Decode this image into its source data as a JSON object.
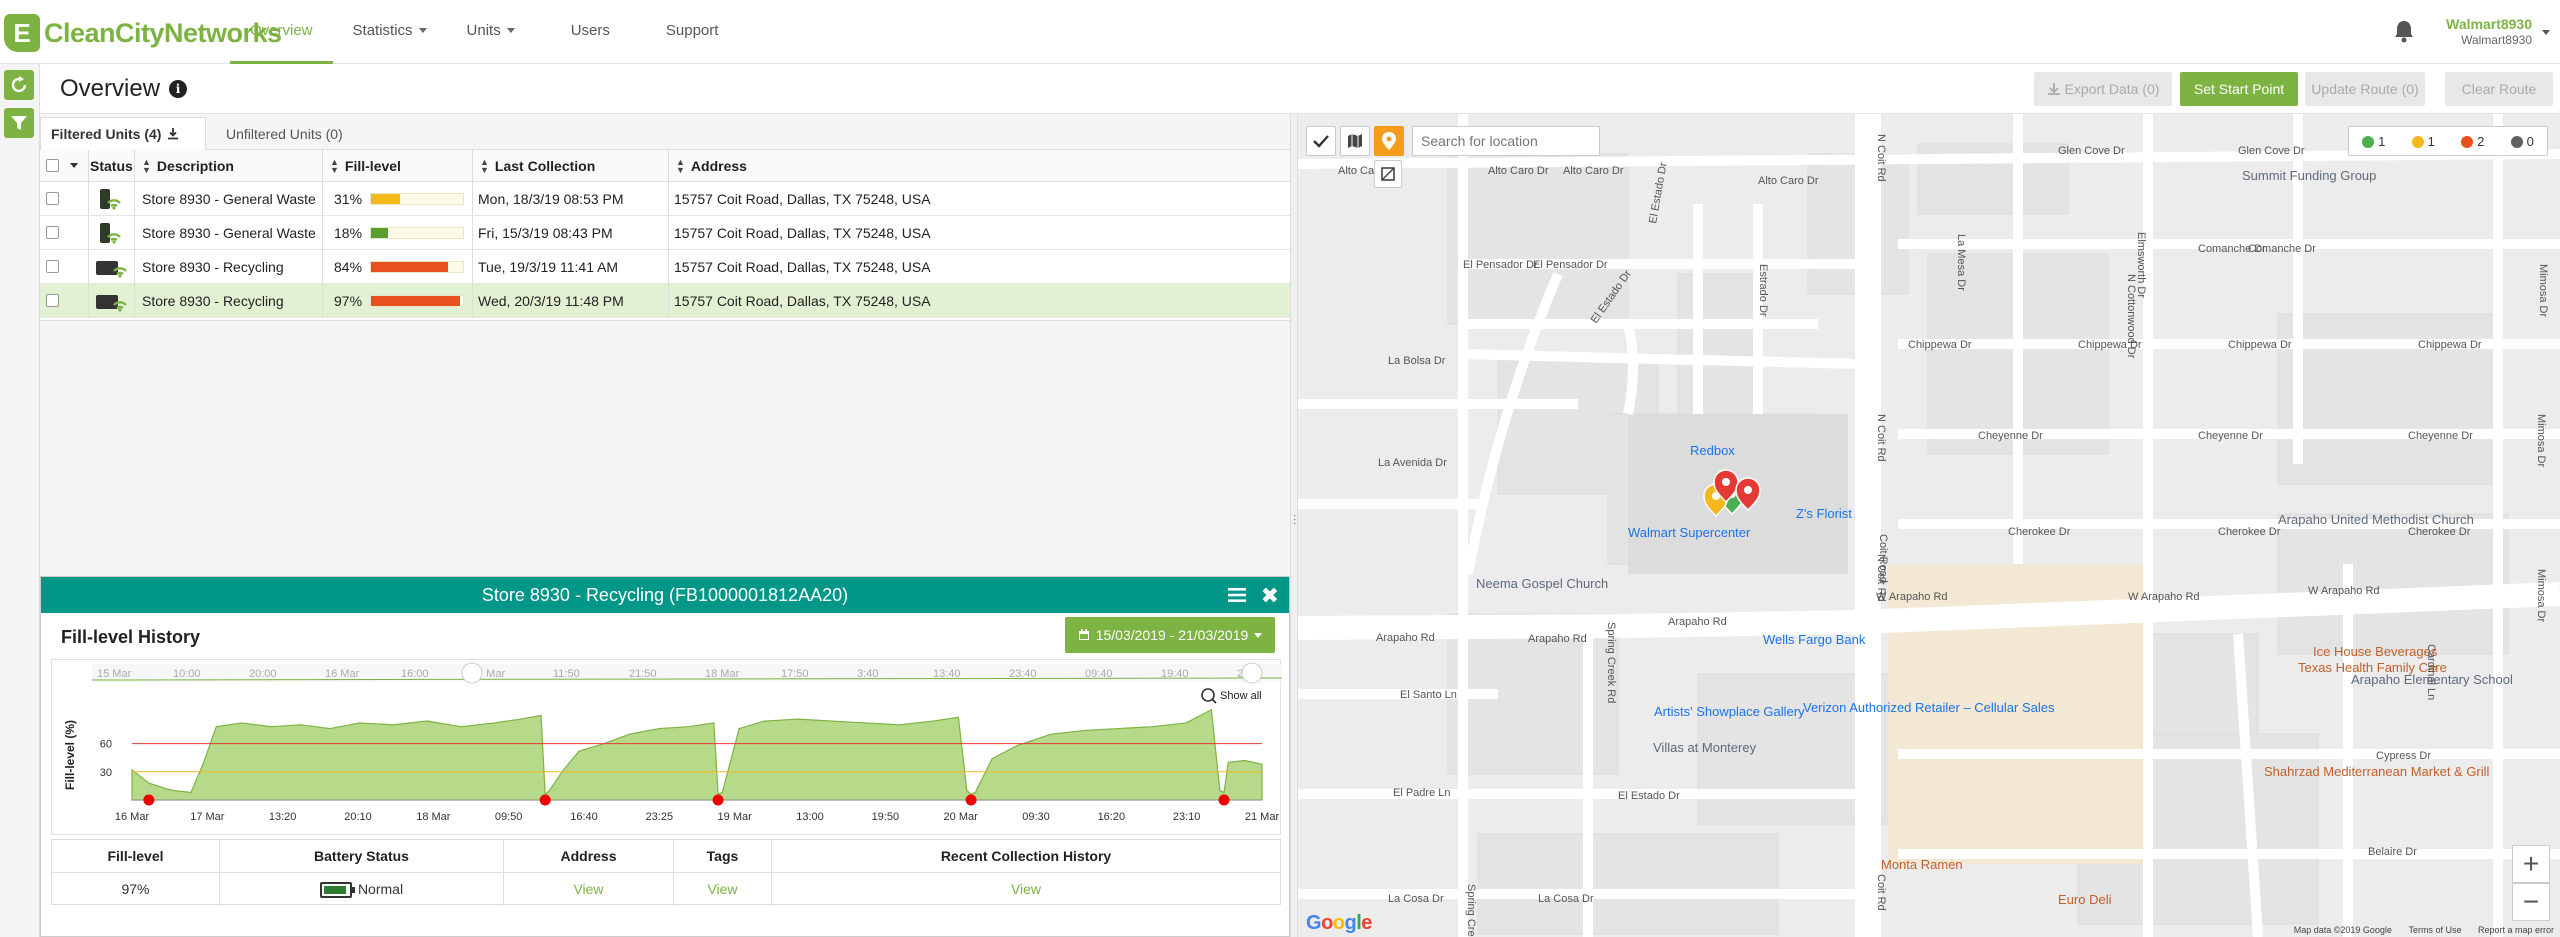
{
  "brand": {
    "letter": "E",
    "name": "CleanCityNetworks"
  },
  "nav": [
    {
      "label": "Overview"
    },
    {
      "label": "Statistics"
    },
    {
      "label": "Units"
    },
    {
      "label": "Users"
    },
    {
      "label": "Support"
    }
  ],
  "user": {
    "name": "Walmart8930",
    "sub": "Walmart8930"
  },
  "page": {
    "title": "Overview",
    "buttons": {
      "export": "Export Data (0)",
      "start": "Set Start Point",
      "update": "Update Route (0)",
      "clear": "Clear Route"
    }
  },
  "tabs": {
    "filtered": "Filtered Units (4)",
    "unfiltered": "Unfiltered Units (0)"
  },
  "grid": {
    "headers": {
      "status": "Status",
      "description": "Description",
      "fill": "Fill-level",
      "last": "Last Collection",
      "address": "Address"
    },
    "rows": [
      {
        "description": "Store 8930 - General Waste",
        "fill": "31%",
        "fill_value": 31,
        "fill_color": "#f5b81a",
        "last": "Mon, 18/3/19 08:53 PM",
        "address": "15757 Coit Road, Dallas, TX 75248, USA",
        "bin": "green"
      },
      {
        "description": "Store 8930 - General Waste",
        "fill": "18%",
        "fill_value": 18,
        "fill_color": "#5a9e2e",
        "last": "Fri, 15/3/19 08:43 PM",
        "address": "15757 Coit Road, Dallas, TX 75248, USA",
        "bin": "green"
      },
      {
        "description": "Store 8930 - Recycling",
        "fill": "84%",
        "fill_value": 84,
        "fill_color": "#e8501e",
        "last": "Tue, 19/3/19 11:41 AM",
        "address": "15757 Coit Road, Dallas, TX 75248, USA",
        "bin": "dark"
      },
      {
        "description": "Store 8930 - Recycling",
        "fill": "97%",
        "fill_value": 97,
        "fill_color": "#e8501e",
        "last": "Wed, 20/3/19 11:48 PM",
        "address": "15757 Coit Road, Dallas, TX 75248, USA",
        "bin": "dark"
      }
    ]
  },
  "detail": {
    "title": "Store 8930 - Recycling (FB1000001812AA20)",
    "history_title": "Fill-level History",
    "date_range": "15/03/2019 - 21/03/2019",
    "show_all": "Show all",
    "summary": {
      "headers": [
        "Fill-level",
        "Battery Status",
        "Address",
        "Tags",
        "Recent Collection History"
      ],
      "fill": "97%",
      "battery": "Normal",
      "address_link": "View",
      "tags_link": "View",
      "history_link": "View"
    }
  },
  "chart_data": {
    "type": "area",
    "title": "",
    "ylabel": "Fill-level (%)",
    "ylim": [
      0,
      100
    ],
    "yticks": [
      "30",
      "60"
    ],
    "threshold_red": 60,
    "threshold_yellow": 30,
    "xticks": [
      "16 Mar",
      "17 Mar",
      "13:20",
      "20:10",
      "18 Mar",
      "09:50",
      "16:40",
      "23:25",
      "19 Mar",
      "13:00",
      "19:50",
      "20 Mar",
      "09:30",
      "16:20",
      "23:10",
      "21 Mar"
    ],
    "navigator_ticks": [
      "15 Mar",
      "10:00",
      "20:00",
      "16 Mar",
      "16:00",
      "7 Mar",
      "11:50",
      "21:50",
      "18 Mar",
      "17:50",
      "3:40",
      "13:40",
      "23:40",
      "09:40",
      "19:40",
      "20"
    ],
    "x": [
      0,
      4,
      8,
      10,
      14,
      17,
      20,
      26,
      33,
      40,
      47,
      54,
      62,
      70,
      78,
      86,
      92,
      97,
      98,
      99,
      102,
      106,
      112,
      118,
      125,
      132,
      138,
      139,
      140,
      144,
      150,
      158,
      166,
      174,
      182,
      190,
      196,
      198,
      199,
      200,
      204,
      210,
      218,
      226,
      234,
      242,
      250,
      256,
      258,
      259,
      260,
      264,
      268
    ],
    "y": [
      32,
      18,
      12,
      10,
      8,
      40,
      78,
      82,
      78,
      80,
      76,
      82,
      80,
      84,
      78,
      82,
      86,
      90,
      6,
      10,
      30,
      52,
      60,
      70,
      76,
      78,
      82,
      6,
      8,
      76,
      84,
      86,
      84,
      82,
      80,
      84,
      88,
      10,
      6,
      8,
      44,
      58,
      70,
      74,
      76,
      78,
      82,
      96,
      10,
      8,
      40,
      42,
      38
    ],
    "collections_x": [
      4,
      98,
      139,
      199,
      259
    ],
    "xmax": 268
  },
  "map": {
    "search_placeholder": "Search for location",
    "legend": [
      {
        "color": "#4caf50",
        "count": "1"
      },
      {
        "color": "#f5b81a",
        "count": "1"
      },
      {
        "color": "#e8501e",
        "count": "2"
      },
      {
        "color": "#616161",
        "count": "0"
      }
    ],
    "labels": [
      "Alto Caro Dr",
      "Alto Caro Dr",
      "Alto Caro Dr",
      "Glen Cove Dr",
      "Glen Cove Dr",
      "Summit Funding Group",
      "El Pensador Dr",
      "El Pensador Dr",
      "Comanche Dr",
      "Comanche Dr",
      "N Coit Rd",
      "N Coit Rd",
      "N Coit Rd",
      "Chippewa Dr",
      "Chippewa Dr",
      "Chippewa Dr",
      "Chippewa Dr",
      "La Bolsa Dr",
      "El Estado Dr",
      "El Estado Dr",
      "Cheyenne Dr",
      "Cheyenne Dr",
      "Cheyenne Dr",
      "La Avenida Dr",
      "Redbox",
      "Walmart Supercenter",
      "Z's Florist",
      "Arapaho United Methodist Church",
      "Cherokee Dr",
      "Cherokee Dr",
      "Cherokee Dr",
      "Neema Gospel Church",
      "W Arapaho Rd",
      "W Arapaho Rd",
      "W Arapaho Rd",
      "Arapaho Rd",
      "Arapaho Rd",
      "Arapaho Rd",
      "Wells Fargo Bank",
      "Ice House Beverages",
      "Texas Health Family Care",
      "Arapaho Elementary School",
      "El Santo Ln",
      "Artists' Showplace Gallery",
      "Verizon Authorized Retailer – Cellular Sales",
      "Villas at Monterey",
      "Shahrzad Mediterranean Market & Grill",
      "Cypress Dr",
      "El Padre Ln",
      "El Estado Dr",
      "Monta Ramen",
      "Belaire Dr",
      "La Cosa Dr",
      "La Cosa Dr",
      "Euro Deli",
      "Spring Creek Rd",
      "Spring Creek Rd",
      "Coit Road",
      "Mimosa Dr",
      "Mimosa Dr",
      "Mimosa Dr",
      "La Mesa Dr",
      "N Cottonwood Dr",
      "Elmsworth Dr",
      "Cardinal Ln",
      "Alto Caro Dr",
      "Estrado Dr",
      "Coit Rd"
    ],
    "google": "Google",
    "footer": [
      "Map data ©2019 Google",
      "Terms of Use",
      "Report a map error"
    ]
  }
}
